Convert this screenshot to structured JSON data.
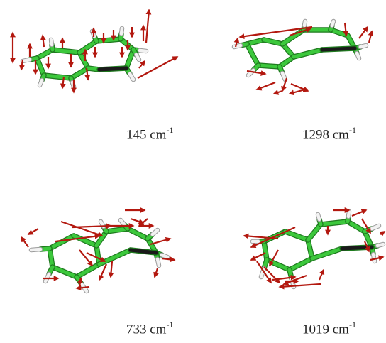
{
  "colors": {
    "carbon": "#3cc83c",
    "bond_edge": "#1f7a1f",
    "nitrogen": "#1a1a1a",
    "hydrogen": "#f2f2f2",
    "hydrogen_edge": "#9a9a9a",
    "arrow": "#b3180f"
  },
  "panels": [
    {
      "value": "145",
      "unit": "cm",
      "exp": "-1"
    },
    {
      "value": "1298",
      "unit": "cm",
      "exp": "-1"
    },
    {
      "value": "733",
      "unit": "cm",
      "exp": "-1"
    },
    {
      "value": "1019",
      "unit": "cm",
      "exp": "-1"
    }
  ]
}
